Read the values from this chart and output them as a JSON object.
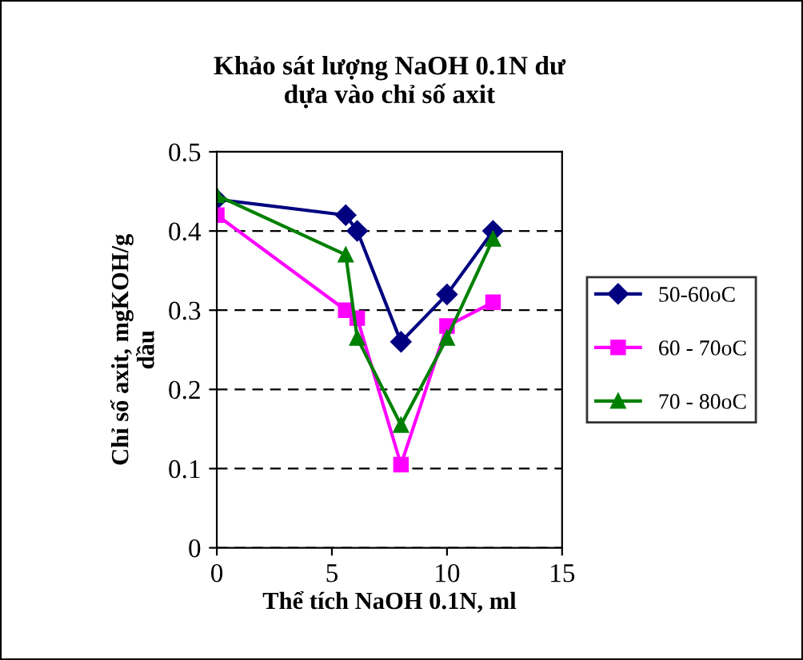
{
  "chart_data": {
    "type": "line",
    "title": "Khảo sát lượng NaOH 0.1N dư\ndựa vào chỉ số axit",
    "xlabel": "Thể tích NaOH 0.1N, ml",
    "ylabel": "Chỉ số axit, mgKOH/g\ndầu",
    "x": [
      0,
      5.6,
      6.1,
      8,
      10,
      12
    ],
    "series": [
      {
        "name": "50-60oC",
        "color": "#000080",
        "marker": "diamond",
        "values": [
          0.44,
          0.42,
          0.4,
          0.26,
          0.32,
          0.4
        ]
      },
      {
        "name": "60 - 70oC",
        "color": "#ff00ff",
        "marker": "square",
        "values": [
          0.42,
          0.3,
          0.29,
          0.105,
          0.28,
          0.31
        ]
      },
      {
        "name": "70 - 80oC",
        "color": "#008000",
        "marker": "triangle",
        "values": [
          0.445,
          0.37,
          0.265,
          0.155,
          0.265,
          0.39
        ]
      }
    ],
    "xlim": [
      0,
      15
    ],
    "xticks": [
      0,
      5,
      10,
      15
    ],
    "ylim": [
      0,
      0.5
    ],
    "yticks": [
      0,
      0.1,
      0.2,
      0.3,
      0.4,
      0.5
    ],
    "grid": "y",
    "legend": "right",
    "line_style": "solid"
  }
}
